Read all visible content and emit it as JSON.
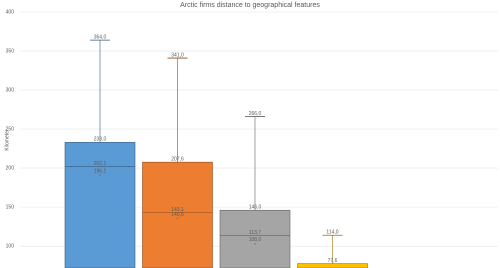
{
  "chart_data": {
    "type": "box",
    "title": "Arctic firms distance to geographical features",
    "y_label": "Kilometer",
    "ylim": [
      72,
      400
    ],
    "yticks": [
      100,
      150,
      200,
      250,
      300,
      350,
      400
    ],
    "grid": true,
    "boxes": [
      {
        "color": "#5b9bd5",
        "q3": 233.0,
        "max": 364.0,
        "median": 202.1,
        "mean": 196.1,
        "value_labels": {
          "q3": "233,0",
          "max": "364,0",
          "median": "202,1",
          "mean": "196,1"
        }
      },
      {
        "color": "#ed7d31",
        "q3": 207.6,
        "max": 341.0,
        "median": 143.1,
        "mean": 140.6,
        "value_labels": {
          "q3": "207,6",
          "max": "341,0",
          "median": "143,1",
          "mean": "140,6"
        }
      },
      {
        "color": "#a5a5a5",
        "q3": 146.0,
        "max": 266.0,
        "median": 113.7,
        "mean": 108.0,
        "value_labels": {
          "q3": "146,0",
          "max": "266,0",
          "median": "113,7",
          "mean": "108,0"
        }
      },
      {
        "color": "#ffc000",
        "q3": 77.6,
        "max": 114.0,
        "value_labels": {
          "q3": "77,6",
          "max": "114,0"
        }
      }
    ]
  }
}
